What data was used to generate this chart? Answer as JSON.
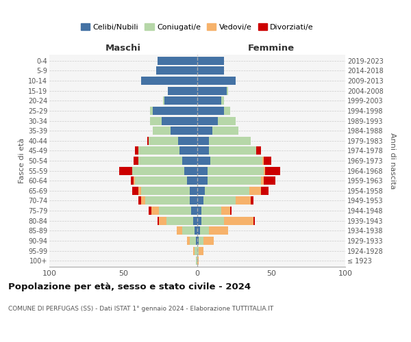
{
  "age_groups": [
    "100+",
    "95-99",
    "90-94",
    "85-89",
    "80-84",
    "75-79",
    "70-74",
    "65-69",
    "60-64",
    "55-59",
    "50-54",
    "45-49",
    "40-44",
    "35-39",
    "30-34",
    "25-29",
    "20-24",
    "15-19",
    "10-14",
    "5-9",
    "0-4"
  ],
  "birth_years": [
    "≤ 1923",
    "1924-1928",
    "1929-1933",
    "1934-1938",
    "1939-1943",
    "1944-1948",
    "1949-1953",
    "1954-1958",
    "1959-1963",
    "1964-1968",
    "1969-1973",
    "1974-1978",
    "1979-1983",
    "1984-1988",
    "1989-1993",
    "1994-1998",
    "1999-2003",
    "2004-2008",
    "2009-2013",
    "2014-2018",
    "2019-2023"
  ],
  "maschi": {
    "celibi": [
      0,
      0,
      1,
      2,
      3,
      4,
      5,
      5,
      7,
      9,
      10,
      12,
      13,
      18,
      24,
      30,
      22,
      20,
      38,
      28,
      27
    ],
    "coniugati": [
      1,
      2,
      4,
      8,
      18,
      22,
      30,
      33,
      35,
      35,
      30,
      28,
      20,
      12,
      8,
      2,
      1,
      0,
      0,
      0,
      0
    ],
    "vedovi": [
      0,
      1,
      2,
      4,
      5,
      5,
      3,
      2,
      1,
      0,
      0,
      0,
      0,
      0,
      0,
      0,
      0,
      0,
      0,
      0,
      0
    ],
    "divorziati": [
      0,
      0,
      0,
      0,
      1,
      2,
      2,
      4,
      2,
      9,
      3,
      2,
      1,
      0,
      0,
      0,
      0,
      0,
      0,
      0,
      0
    ]
  },
  "femmine": {
    "nubili": [
      0,
      0,
      1,
      2,
      3,
      3,
      4,
      5,
      7,
      7,
      9,
      8,
      8,
      10,
      14,
      18,
      16,
      20,
      26,
      18,
      18
    ],
    "coniugate": [
      0,
      1,
      3,
      6,
      15,
      13,
      22,
      30,
      36,
      38,
      35,
      32,
      28,
      18,
      12,
      4,
      2,
      1,
      0,
      0,
      0
    ],
    "vedove": [
      1,
      3,
      7,
      13,
      20,
      6,
      10,
      8,
      2,
      1,
      1,
      0,
      0,
      0,
      0,
      0,
      0,
      0,
      0,
      0,
      0
    ],
    "divorziate": [
      0,
      0,
      0,
      0,
      1,
      1,
      2,
      5,
      8,
      10,
      5,
      3,
      0,
      0,
      0,
      0,
      0,
      0,
      0,
      0,
      0
    ]
  },
  "color_celibi": "#4472a4",
  "color_coniugati": "#b6d7a8",
  "color_vedovi": "#f6b26b",
  "color_divorziati": "#cc0000",
  "title": "Popolazione per età, sesso e stato civile - 2024",
  "subtitle": "COMUNE DI PERFUGAS (SS) - Dati ISTAT 1° gennaio 2024 - Elaborazione TUTTITALIA.IT",
  "xlabel_left": "Maschi",
  "xlabel_right": "Femmine",
  "ylabel_left": "Fasce di età",
  "ylabel_right": "Anni di nascita",
  "xlim": 100,
  "bg_color": "#ffffff",
  "grid_color": "#cccccc",
  "ax_bg": "#f5f5f5"
}
